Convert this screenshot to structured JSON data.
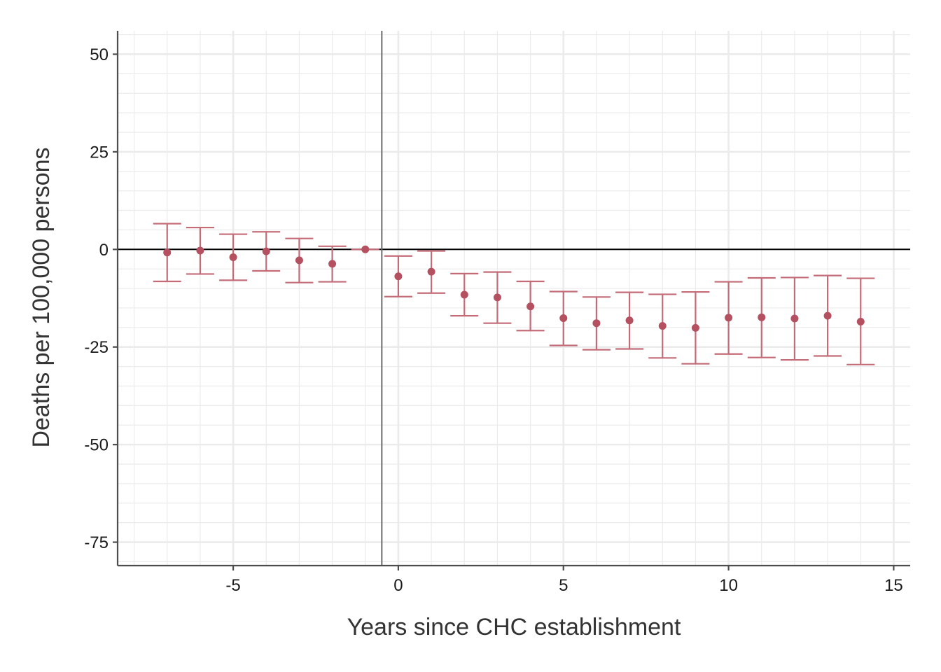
{
  "chart_data": {
    "type": "scatter",
    "subtype": "event-study point estimates with confidence-interval error bars",
    "title": "",
    "xlabel": "Years since CHC establishment",
    "ylabel": "Deaths per 100,000 persons",
    "xlim": [
      -8.5,
      15.5
    ],
    "ylim": [
      -81,
      56
    ],
    "x_ticks": [
      -5,
      0,
      5,
      10,
      15
    ],
    "x_tick_labels": [
      "-5",
      "0",
      "5",
      "10",
      "15"
    ],
    "y_ticks": [
      50,
      25,
      0,
      -25,
      -50,
      -75
    ],
    "y_tick_labels": [
      "50",
      "25",
      "0",
      "-25",
      "-50",
      "-75"
    ],
    "grid": true,
    "reference_lines": {
      "horizontal_y": 0,
      "vertical_x": -0.5
    },
    "colors": {
      "series": "#b4505f",
      "errorbar": "#c46b78",
      "zero_line": "#000000",
      "event_line": "#6b6b6b",
      "grid": "#ebebeb",
      "axis": "#4d4d4d"
    },
    "series": [
      {
        "x": [
          -7,
          -6,
          -5,
          -4,
          -3,
          -2,
          -1,
          0,
          1,
          2,
          3,
          4,
          5,
          6,
          7,
          8,
          9,
          10,
          11,
          12,
          13,
          14
        ],
        "y": [
          -0.8,
          -0.3,
          -2.0,
          -0.5,
          -2.8,
          -3.7,
          0,
          -6.9,
          -5.7,
          -11.6,
          -12.3,
          -14.6,
          -17.6,
          -18.9,
          -18.2,
          -19.6,
          -20.1,
          -17.5,
          -17.4,
          -17.7,
          -17.0,
          -18.5
        ],
        "lower": [
          -8.2,
          -6.3,
          -7.9,
          -5.5,
          -8.5,
          -8.3,
          0,
          -12.1,
          -11.2,
          -17.0,
          -18.9,
          -20.8,
          -24.6,
          -25.7,
          -25.5,
          -27.8,
          -29.3,
          -26.8,
          -27.7,
          -28.3,
          -27.3,
          -29.5
        ],
        "upper": [
          6.6,
          5.6,
          3.9,
          4.5,
          2.8,
          0.8,
          0,
          -1.7,
          -0.4,
          -6.2,
          -5.8,
          -8.2,
          -10.8,
          -12.2,
          -11.0,
          -11.5,
          -10.9,
          -8.3,
          -7.3,
          -7.2,
          -6.7,
          -7.4
        ]
      }
    ]
  }
}
